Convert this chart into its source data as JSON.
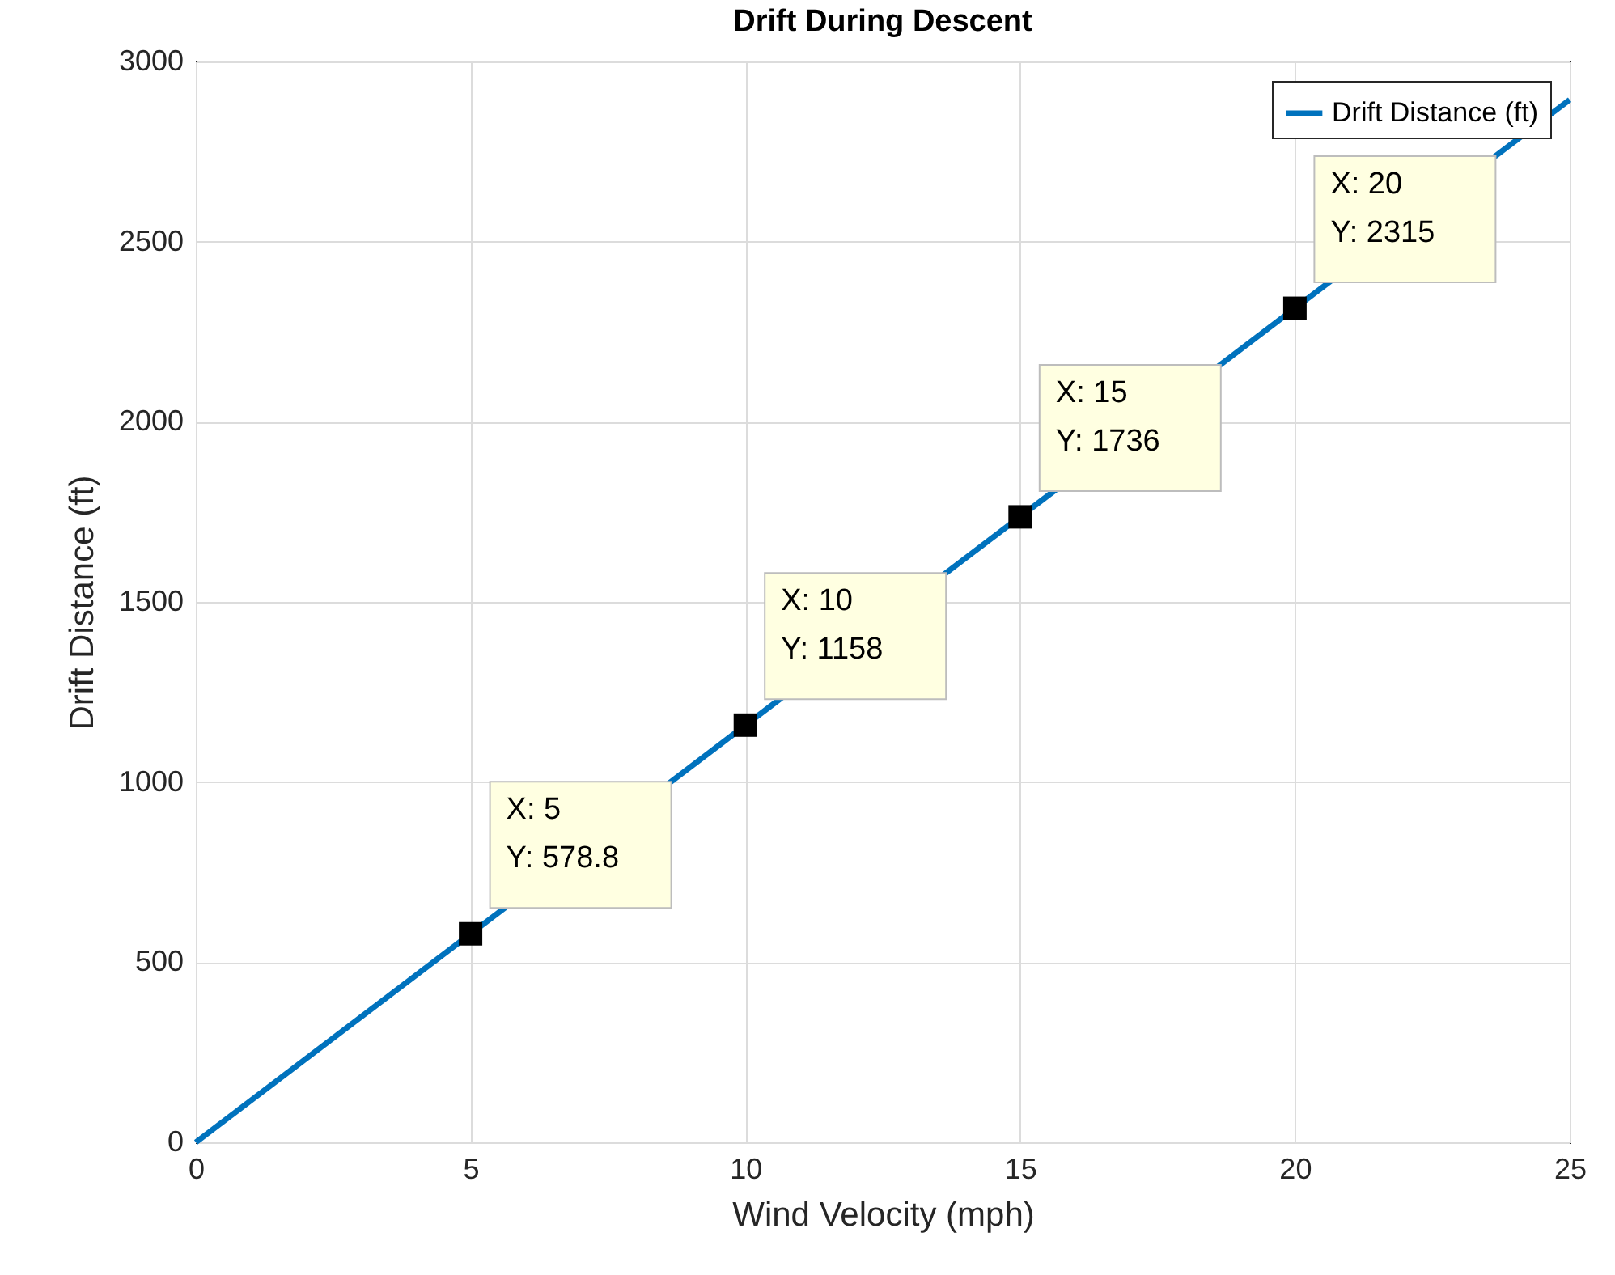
{
  "chart_data": {
    "type": "line",
    "title": "Drift During Descent",
    "xlabel": "Wind Velocity (mph)",
    "ylabel": "Drift Distance (ft)",
    "xlim": [
      0,
      25
    ],
    "xticks": [
      0,
      5,
      10,
      15,
      20,
      25
    ],
    "ylim": [
      0,
      3000
    ],
    "yticks": [
      0,
      500,
      1000,
      1500,
      2000,
      2500,
      3000
    ],
    "grid": true,
    "legend": "top right",
    "series": [
      {
        "name": "Drift Distance (ft)",
        "type": "line",
        "color": "#0072bd",
        "x": [
          0,
          25
        ],
        "values": [
          0,
          2894
        ]
      },
      {
        "type": "scatter",
        "marker": "square",
        "color": "#000000",
        "x": [
          5,
          10,
          15,
          20
        ],
        "values": [
          578.8,
          1158,
          1736,
          2315
        ]
      }
    ],
    "annotations": [
      {
        "text": "X: 5\nY: 578.8",
        "x": 5,
        "y": 578.8
      },
      {
        "text": "X: 10\nY: 1158",
        "x": 10,
        "y": 1158
      },
      {
        "text": "X: 15\nY: 1736",
        "x": 15,
        "y": 1736
      },
      {
        "text": "X: 20\nY: 2315",
        "x": 20,
        "y": 2315
      }
    ]
  }
}
